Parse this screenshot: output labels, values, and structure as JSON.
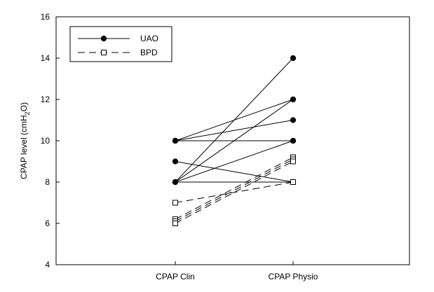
{
  "chart_data": {
    "type": "line",
    "ylabel_main": "CPAP level (cmH",
    "ylabel_sub": "2",
    "ylabel_tail": "O)",
    "xlabel": "",
    "categories": [
      "CPAP Clin",
      "CPAP Physio"
    ],
    "ylim": [
      4,
      16
    ],
    "yticks": [
      "4",
      "6",
      "8",
      "10",
      "12",
      "14",
      "16"
    ],
    "grid": false,
    "legend_position": "top-left",
    "legend": [
      {
        "label": "UAO",
        "line": "solid",
        "marker": "filled-circle"
      },
      {
        "label": "BPD",
        "line": "dashed",
        "marker": "open-square"
      }
    ],
    "groups": [
      {
        "name": "UAO",
        "line": "solid",
        "marker": "filled-circle",
        "pairs": [
          [
            10,
            12
          ],
          [
            10,
            10
          ],
          [
            10,
            11
          ],
          [
            9,
            8
          ],
          [
            8,
            14
          ],
          [
            8,
            12
          ],
          [
            8,
            10
          ],
          [
            8,
            8
          ]
        ]
      },
      {
        "name": "BPD",
        "line": "dashed",
        "marker": "open-square",
        "pairs": [
          [
            7,
            8
          ],
          [
            6.2,
            9.2
          ],
          [
            6.1,
            9.1
          ],
          [
            6,
            9
          ]
        ]
      }
    ]
  }
}
